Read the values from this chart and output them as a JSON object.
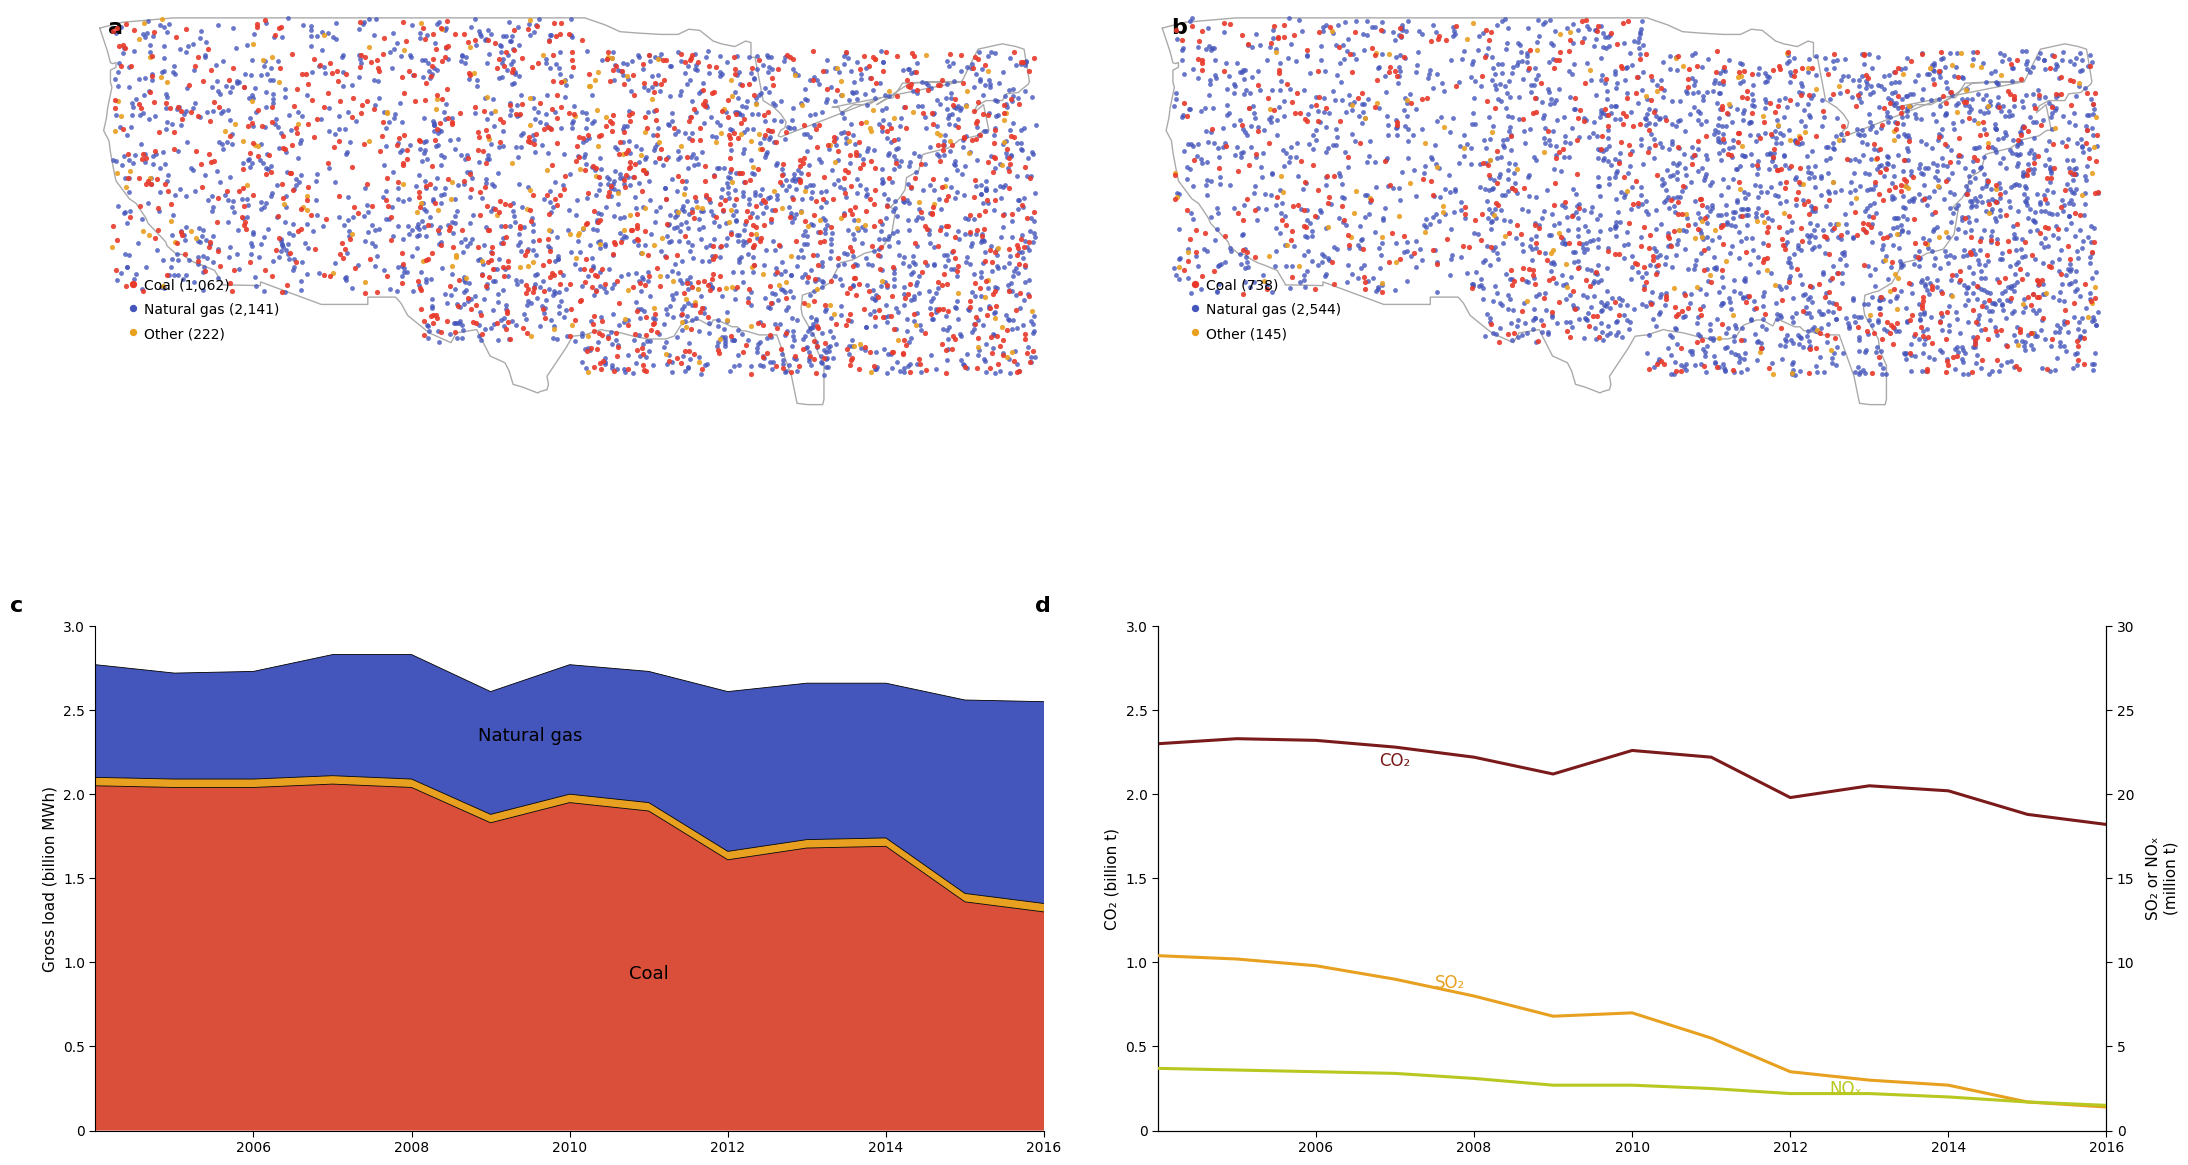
{
  "legend_a": {
    "coal": {
      "label": "Coal (1,062)",
      "color": "#e8392a"
    },
    "gas": {
      "label": "Natural gas (2,141)",
      "color": "#4455bb"
    },
    "other": {
      "label": "Other (222)",
      "color": "#e8a020"
    }
  },
  "legend_b": {
    "coal": {
      "label": "Coal (738)",
      "color": "#e8392a"
    },
    "gas": {
      "label": "Natural gas (2,544)",
      "color": "#4455bb"
    },
    "other": {
      "label": "Other (145)",
      "color": "#e8a020"
    }
  },
  "panel_c": {
    "years": [
      2004,
      2005,
      2006,
      2007,
      2008,
      2009,
      2010,
      2011,
      2012,
      2013,
      2014,
      2015,
      2016
    ],
    "coal": [
      2.05,
      2.04,
      2.04,
      2.06,
      2.04,
      1.83,
      1.95,
      1.9,
      1.61,
      1.68,
      1.69,
      1.36,
      1.3
    ],
    "other": [
      0.05,
      0.05,
      0.05,
      0.05,
      0.05,
      0.05,
      0.05,
      0.05,
      0.05,
      0.05,
      0.05,
      0.05,
      0.05
    ],
    "gas": [
      0.67,
      0.63,
      0.64,
      0.72,
      0.74,
      0.73,
      0.77,
      0.78,
      0.95,
      0.93,
      0.92,
      1.15,
      1.2
    ],
    "coal_color": "#d94f3a",
    "other_color": "#e8a020",
    "gas_color": "#4455bb",
    "ylabel": "Gross load (billion MWh)",
    "ylim": [
      0,
      3.0
    ],
    "yticks": [
      0,
      0.5,
      1.0,
      1.5,
      2.0,
      2.5,
      3.0
    ],
    "coal_label": "Coal",
    "gas_label": "Natural gas"
  },
  "panel_d": {
    "years": [
      2004,
      2005,
      2006,
      2007,
      2008,
      2009,
      2010,
      2011,
      2012,
      2013,
      2014,
      2015,
      2016
    ],
    "co2": [
      2.3,
      2.33,
      2.32,
      2.28,
      2.22,
      2.12,
      2.26,
      2.22,
      1.98,
      2.05,
      2.02,
      1.88,
      1.82
    ],
    "so2": [
      10.4,
      10.2,
      9.8,
      9.0,
      8.0,
      6.8,
      7.0,
      5.5,
      3.5,
      3.0,
      2.7,
      1.7,
      1.4
    ],
    "nox": [
      3.7,
      3.6,
      3.5,
      3.4,
      3.1,
      2.7,
      2.7,
      2.5,
      2.2,
      2.2,
      2.0,
      1.7,
      1.5
    ],
    "co2_color": "#7b1a1a",
    "so2_color": "#e8a020",
    "nox_color": "#b8c820",
    "co2_label": "CO₂",
    "so2_label": "SO₂",
    "nox_label": "NOₓ",
    "ylabel_left": "CO₂ (billion t)",
    "ylabel_right": "SO₂ or NOₓ\n(million t)",
    "ylim_left": [
      0,
      3.0
    ],
    "ylim_right": [
      0,
      30
    ],
    "yticks_left": [
      0,
      0.5,
      1.0,
      1.5,
      2.0,
      2.5,
      3.0
    ],
    "yticks_right": [
      0,
      5,
      10,
      15,
      20,
      25,
      30
    ]
  },
  "background_color": "#ffffff",
  "map_border_color": "#aaaaaa",
  "lon_min": -125.0,
  "lon_max": -66.5,
  "lat_min": 24.0,
  "lat_max": 49.5
}
